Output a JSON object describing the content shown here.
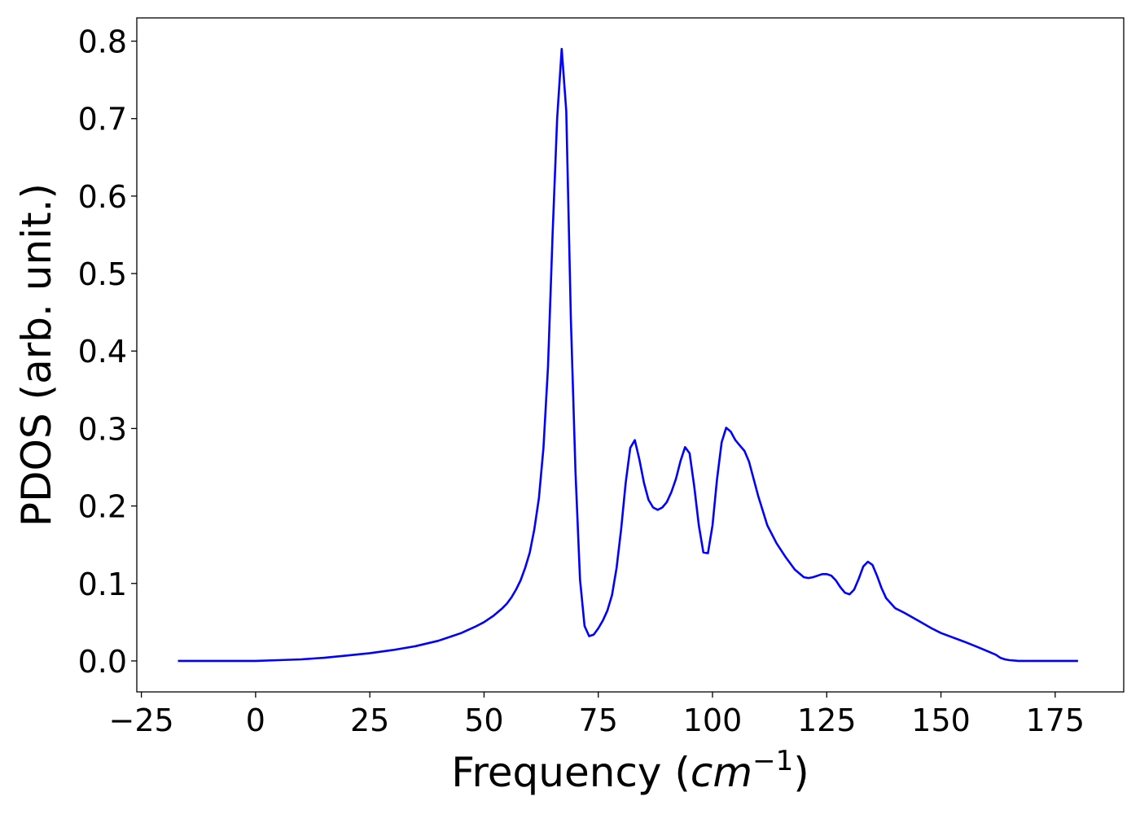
{
  "chart_data": {
    "type": "line",
    "xlabel": "Frequency (cm⁻¹)",
    "xlabel_parts": {
      "text": "Frequency (",
      "italic": "cm",
      "sup": "−1",
      "close": ")"
    },
    "ylabel": "PDOS (arb. unit.)",
    "xlim": [
      -26,
      190
    ],
    "ylim": [
      -0.04,
      0.83
    ],
    "xticks": [
      -25,
      0,
      25,
      50,
      75,
      100,
      125,
      150,
      175
    ],
    "xtick_labels": [
      "−25",
      "0",
      "25",
      "50",
      "75",
      "100",
      "125",
      "150",
      "175"
    ],
    "yticks": [
      0.0,
      0.1,
      0.2,
      0.3,
      0.4,
      0.5,
      0.6,
      0.7,
      0.8
    ],
    "ytick_labels": [
      "0.0",
      "0.1",
      "0.2",
      "0.3",
      "0.4",
      "0.5",
      "0.6",
      "0.7",
      "0.8"
    ],
    "grid": false,
    "line_color": "#0000ff",
    "series": [
      {
        "x": [
          -17,
          -10,
          0,
          5,
          10,
          15,
          20,
          25,
          30,
          35,
          40,
          43,
          45,
          48,
          50,
          52,
          54,
          55,
          56,
          57,
          58,
          59,
          60,
          61,
          62,
          63,
          64,
          65,
          66,
          67,
          68,
          69,
          70,
          71,
          72,
          73,
          74,
          75,
          76,
          77,
          78,
          79,
          80,
          81,
          82,
          83,
          84,
          85,
          86,
          87,
          88,
          89,
          90,
          91,
          92,
          93,
          94,
          95,
          96,
          97,
          98,
          99,
          100,
          101,
          102,
          103,
          104,
          105,
          106,
          107,
          108,
          109,
          110,
          112,
          114,
          116,
          118,
          120,
          121,
          122,
          124,
          125,
          126,
          127,
          128,
          129,
          130,
          131,
          132,
          133,
          134,
          135,
          136,
          137,
          138,
          140,
          142,
          145,
          148,
          150,
          155,
          158,
          160,
          162,
          163,
          164,
          165,
          167,
          170,
          180
        ],
        "y": [
          0.0,
          0.0,
          0.0,
          0.001,
          0.002,
          0.004,
          0.007,
          0.01,
          0.014,
          0.019,
          0.026,
          0.032,
          0.036,
          0.044,
          0.05,
          0.058,
          0.068,
          0.074,
          0.082,
          0.092,
          0.104,
          0.12,
          0.14,
          0.17,
          0.21,
          0.275,
          0.38,
          0.55,
          0.7,
          0.79,
          0.71,
          0.44,
          0.245,
          0.105,
          0.045,
          0.032,
          0.034,
          0.042,
          0.052,
          0.065,
          0.085,
          0.12,
          0.17,
          0.23,
          0.275,
          0.285,
          0.26,
          0.23,
          0.208,
          0.198,
          0.195,
          0.198,
          0.205,
          0.218,
          0.235,
          0.258,
          0.276,
          0.268,
          0.225,
          0.175,
          0.14,
          0.139,
          0.175,
          0.235,
          0.282,
          0.301,
          0.296,
          0.285,
          0.278,
          0.271,
          0.257,
          0.235,
          0.213,
          0.175,
          0.152,
          0.134,
          0.118,
          0.108,
          0.107,
          0.108,
          0.112,
          0.112,
          0.11,
          0.104,
          0.095,
          0.088,
          0.086,
          0.092,
          0.106,
          0.122,
          0.128,
          0.124,
          0.11,
          0.094,
          0.081,
          0.068,
          0.062,
          0.052,
          0.042,
          0.036,
          0.025,
          0.018,
          0.013,
          0.008,
          0.004,
          0.002,
          0.001,
          0.0,
          0.0,
          0.0
        ]
      }
    ]
  }
}
